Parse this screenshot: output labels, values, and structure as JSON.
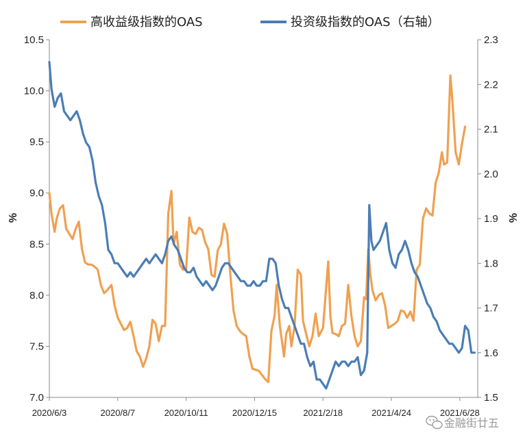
{
  "chart_data": {
    "type": "line",
    "title": "",
    "x_labels": [
      "2020/6/3",
      "2020/8/7",
      "2020/10/11",
      "2020/12/15",
      "2021/2/18",
      "2021/4/24",
      "2021/6/28"
    ],
    "xlim": [
      "2020/6/3",
      "2021/7/15"
    ],
    "ylabel_left": "%",
    "ylabel_right": "%",
    "ylim_left": [
      7.0,
      10.5
    ],
    "yticks_left": [
      "7.0",
      "7.5",
      "8.0",
      "8.5",
      "9.0",
      "9.5",
      "10.0",
      "10.5"
    ],
    "ylim_right": [
      1.5,
      2.3
    ],
    "yticks_right": [
      "1.5",
      "1.6",
      "1.7",
      "1.8",
      "1.9",
      "2.0",
      "2.1",
      "2.2",
      "2.3"
    ],
    "grid": false,
    "legend_position": "top",
    "series": [
      {
        "name": "高收益级指数的OAS",
        "axis": "left",
        "color": "#F0A050",
        "points": [
          [
            "2020/6/3",
            9.0
          ],
          [
            "2020/6/5",
            8.8
          ],
          [
            "2020/6/8",
            8.62
          ],
          [
            "2020/6/10",
            8.75
          ],
          [
            "2020/6/13",
            8.85
          ],
          [
            "2020/6/16",
            8.88
          ],
          [
            "2020/6/19",
            8.65
          ],
          [
            "2020/6/22",
            8.6
          ],
          [
            "2020/6/25",
            8.55
          ],
          [
            "2020/6/28",
            8.65
          ],
          [
            "2020/7/1",
            8.72
          ],
          [
            "2020/7/4",
            8.45
          ],
          [
            "2020/7/7",
            8.32
          ],
          [
            "2020/7/10",
            8.3
          ],
          [
            "2020/7/13",
            8.3
          ],
          [
            "2020/7/16",
            8.28
          ],
          [
            "2020/7/19",
            8.25
          ],
          [
            "2020/7/22",
            8.1
          ],
          [
            "2020/7/25",
            8.02
          ],
          [
            "2020/7/28",
            8.05
          ],
          [
            "2020/8/1",
            8.1
          ],
          [
            "2020/8/4",
            7.9
          ],
          [
            "2020/8/7",
            7.78
          ],
          [
            "2020/8/10",
            7.72
          ],
          [
            "2020/8/13",
            7.66
          ],
          [
            "2020/8/16",
            7.68
          ],
          [
            "2020/8/19",
            7.74
          ],
          [
            "2020/8/22",
            7.6
          ],
          [
            "2020/8/25",
            7.45
          ],
          [
            "2020/8/28",
            7.4
          ],
          [
            "2020/8/31",
            7.3
          ],
          [
            "2020/9/3",
            7.38
          ],
          [
            "2020/9/6",
            7.5
          ],
          [
            "2020/9/9",
            7.76
          ],
          [
            "2020/9/12",
            7.72
          ],
          [
            "2020/9/15",
            7.55
          ],
          [
            "2020/9/18",
            7.7
          ],
          [
            "2020/9/21",
            7.7
          ],
          [
            "2020/9/24",
            8.8
          ],
          [
            "2020/9/27",
            9.02
          ],
          [
            "2020/9/29",
            8.5
          ],
          [
            "2020/10/2",
            8.62
          ],
          [
            "2020/10/5",
            8.3
          ],
          [
            "2020/10/8",
            8.25
          ],
          [
            "2020/10/11",
            8.25
          ],
          [
            "2020/10/14",
            8.76
          ],
          [
            "2020/10/17",
            8.62
          ],
          [
            "2020/10/20",
            8.6
          ],
          [
            "2020/10/23",
            8.66
          ],
          [
            "2020/10/26",
            8.64
          ],
          [
            "2020/10/29",
            8.52
          ],
          [
            "2020/11/1",
            8.45
          ],
          [
            "2020/11/4",
            8.2
          ],
          [
            "2020/11/7",
            8.18
          ],
          [
            "2020/11/10",
            8.44
          ],
          [
            "2020/11/13",
            8.5
          ],
          [
            "2020/11/16",
            8.7
          ],
          [
            "2020/11/19",
            8.6
          ],
          [
            "2020/11/22",
            8.2
          ],
          [
            "2020/11/25",
            7.85
          ],
          [
            "2020/11/28",
            7.7
          ],
          [
            "2020/12/1",
            7.65
          ],
          [
            "2020/12/4",
            7.62
          ],
          [
            "2020/12/7",
            7.6
          ],
          [
            "2020/12/10",
            7.4
          ],
          [
            "2020/12/13",
            7.28
          ],
          [
            "2020/12/16",
            7.27
          ],
          [
            "2020/12/19",
            7.26
          ],
          [
            "2020/12/22",
            7.22
          ],
          [
            "2020/12/25",
            7.18
          ],
          [
            "2020/12/28",
            7.15
          ],
          [
            "2020/12/31",
            7.65
          ],
          [
            "2021/1/3",
            7.8
          ],
          [
            "2021/1/5",
            8.1
          ],
          [
            "2021/1/8",
            7.7
          ],
          [
            "2021/1/10",
            7.55
          ],
          [
            "2021/1/12",
            7.4
          ],
          [
            "2021/1/14",
            7.62
          ],
          [
            "2021/1/17",
            7.7
          ],
          [
            "2021/1/19",
            7.5
          ],
          [
            "2021/1/22",
            7.7
          ],
          [
            "2021/1/25",
            8.25
          ],
          [
            "2021/1/28",
            8.2
          ],
          [
            "2021/1/30",
            7.75
          ],
          [
            "2021/2/2",
            7.62
          ],
          [
            "2021/2/5",
            7.5
          ],
          [
            "2021/2/8",
            7.6
          ],
          [
            "2021/2/11",
            7.82
          ],
          [
            "2021/2/14",
            7.6
          ],
          [
            "2021/2/18",
            7.68
          ],
          [
            "2021/2/21",
            8.08
          ],
          [
            "2021/2/23",
            8.33
          ],
          [
            "2021/2/25",
            7.8
          ],
          [
            "2021/2/27",
            7.63
          ],
          [
            "2021/3/2",
            7.62
          ],
          [
            "2021/3/5",
            7.6
          ],
          [
            "2021/3/8",
            7.7
          ],
          [
            "2021/3/11",
            7.72
          ],
          [
            "2021/3/14",
            8.1
          ],
          [
            "2021/3/17",
            7.8
          ],
          [
            "2021/3/20",
            7.6
          ],
          [
            "2021/3/23",
            7.5
          ],
          [
            "2021/3/26",
            7.55
          ],
          [
            "2021/3/29",
            7.98
          ],
          [
            "2021/3/31",
            7.96
          ],
          [
            "2021/4/2",
            8.45
          ],
          [
            "2021/4/4",
            8.2
          ],
          [
            "2021/4/6",
            8.05
          ],
          [
            "2021/4/9",
            7.95
          ],
          [
            "2021/4/12",
            8.0
          ],
          [
            "2021/4/15",
            8.02
          ],
          [
            "2021/4/18",
            7.9
          ],
          [
            "2021/4/21",
            7.68
          ],
          [
            "2021/4/24",
            7.7
          ],
          [
            "2021/4/27",
            7.72
          ],
          [
            "2021/4/30",
            7.75
          ],
          [
            "2021/5/3",
            7.85
          ],
          [
            "2021/5/6",
            7.84
          ],
          [
            "2021/5/9",
            7.78
          ],
          [
            "2021/5/12",
            7.84
          ],
          [
            "2021/5/15",
            7.75
          ],
          [
            "2021/5/18",
            8.25
          ],
          [
            "2021/5/21",
            8.3
          ],
          [
            "2021/5/24",
            8.75
          ],
          [
            "2021/5/27",
            8.85
          ],
          [
            "2021/5/30",
            8.8
          ],
          [
            "2021/6/2",
            8.78
          ],
          [
            "2021/6/5",
            9.1
          ],
          [
            "2021/6/8",
            9.2
          ],
          [
            "2021/6/11",
            9.4
          ],
          [
            "2021/6/13",
            9.28
          ],
          [
            "2021/6/16",
            9.3
          ],
          [
            "2021/6/19",
            10.15
          ],
          [
            "2021/6/21",
            9.9
          ],
          [
            "2021/6/24",
            9.4
          ],
          [
            "2021/6/27",
            9.28
          ],
          [
            "2021/6/30",
            9.48
          ],
          [
            "2021/7/3",
            9.65
          ]
        ]
      },
      {
        "name": "投资级指数的OAS（右轴）",
        "axis": "right",
        "color": "#4A7DB5",
        "points": [
          [
            "2020/6/3",
            2.25
          ],
          [
            "2020/6/5",
            2.19
          ],
          [
            "2020/6/8",
            2.15
          ],
          [
            "2020/6/11",
            2.17
          ],
          [
            "2020/6/14",
            2.18
          ],
          [
            "2020/6/17",
            2.14
          ],
          [
            "2020/6/20",
            2.13
          ],
          [
            "2020/6/23",
            2.12
          ],
          [
            "2020/6/26",
            2.13
          ],
          [
            "2020/6/29",
            2.14
          ],
          [
            "2020/7/2",
            2.12
          ],
          [
            "2020/7/5",
            2.09
          ],
          [
            "2020/7/8",
            2.07
          ],
          [
            "2020/7/11",
            2.06
          ],
          [
            "2020/7/14",
            2.03
          ],
          [
            "2020/7/17",
            1.98
          ],
          [
            "2020/7/20",
            1.95
          ],
          [
            "2020/7/23",
            1.93
          ],
          [
            "2020/7/26",
            1.89
          ],
          [
            "2020/7/29",
            1.83
          ],
          [
            "2020/8/1",
            1.82
          ],
          [
            "2020/8/4",
            1.8
          ],
          [
            "2020/8/7",
            1.8
          ],
          [
            "2020/8/10",
            1.79
          ],
          [
            "2020/8/13",
            1.78
          ],
          [
            "2020/8/16",
            1.77
          ],
          [
            "2020/8/19",
            1.78
          ],
          [
            "2020/8/22",
            1.77
          ],
          [
            "2020/8/25",
            1.78
          ],
          [
            "2020/8/28",
            1.79
          ],
          [
            "2020/8/31",
            1.8
          ],
          [
            "2020/9/3",
            1.81
          ],
          [
            "2020/9/6",
            1.8
          ],
          [
            "2020/9/9",
            1.81
          ],
          [
            "2020/9/12",
            1.82
          ],
          [
            "2020/9/15",
            1.81
          ],
          [
            "2020/9/18",
            1.8
          ],
          [
            "2020/9/21",
            1.82
          ],
          [
            "2020/9/24",
            1.85
          ],
          [
            "2020/9/27",
            1.86
          ],
          [
            "2020/9/30",
            1.84
          ],
          [
            "2020/10/3",
            1.83
          ],
          [
            "2020/10/6",
            1.81
          ],
          [
            "2020/10/9",
            1.79
          ],
          [
            "2020/10/12",
            1.78
          ],
          [
            "2020/10/15",
            1.78
          ],
          [
            "2020/10/18",
            1.79
          ],
          [
            "2020/10/21",
            1.77
          ],
          [
            "2020/10/24",
            1.76
          ],
          [
            "2020/10/27",
            1.75
          ],
          [
            "2020/10/30",
            1.76
          ],
          [
            "2020/11/2",
            1.75
          ],
          [
            "2020/11/5",
            1.74
          ],
          [
            "2020/11/8",
            1.75
          ],
          [
            "2020/11/11",
            1.77
          ],
          [
            "2020/11/14",
            1.79
          ],
          [
            "2020/11/17",
            1.8
          ],
          [
            "2020/11/20",
            1.8
          ],
          [
            "2020/11/23",
            1.79
          ],
          [
            "2020/11/26",
            1.78
          ],
          [
            "2020/11/29",
            1.77
          ],
          [
            "2020/12/2",
            1.76
          ],
          [
            "2020/12/5",
            1.76
          ],
          [
            "2020/12/8",
            1.75
          ],
          [
            "2020/12/11",
            1.75
          ],
          [
            "2020/12/14",
            1.76
          ],
          [
            "2020/12/17",
            1.75
          ],
          [
            "2020/12/20",
            1.75
          ],
          [
            "2020/12/23",
            1.76
          ],
          [
            "2020/12/26",
            1.76
          ],
          [
            "2020/12/29",
            1.81
          ],
          [
            "2021/1/1",
            1.81
          ],
          [
            "2021/1/4",
            1.8
          ],
          [
            "2021/1/7",
            1.75
          ],
          [
            "2021/1/10",
            1.72
          ],
          [
            "2021/1/13",
            1.7
          ],
          [
            "2021/1/16",
            1.7
          ],
          [
            "2021/1/19",
            1.68
          ],
          [
            "2021/1/22",
            1.66
          ],
          [
            "2021/1/25",
            1.64
          ],
          [
            "2021/1/28",
            1.62
          ],
          [
            "2021/1/31",
            1.62
          ],
          [
            "2021/2/3",
            1.59
          ],
          [
            "2021/2/6",
            1.57
          ],
          [
            "2021/2/9",
            1.58
          ],
          [
            "2021/2/12",
            1.54
          ],
          [
            "2021/2/15",
            1.54
          ],
          [
            "2021/2/18",
            1.53
          ],
          [
            "2021/2/21",
            1.52
          ],
          [
            "2021/2/24",
            1.54
          ],
          [
            "2021/2/27",
            1.56
          ],
          [
            "2021/3/2",
            1.58
          ],
          [
            "2021/3/5",
            1.57
          ],
          [
            "2021/3/8",
            1.58
          ],
          [
            "2021/3/11",
            1.58
          ],
          [
            "2021/3/14",
            1.57
          ],
          [
            "2021/3/17",
            1.58
          ],
          [
            "2021/3/20",
            1.58
          ],
          [
            "2021/3/23",
            1.59
          ],
          [
            "2021/3/26",
            1.55
          ],
          [
            "2021/3/29",
            1.56
          ],
          [
            "2021/4/1",
            1.6
          ],
          [
            "2021/4/3",
            1.93
          ],
          [
            "2021/4/5",
            1.85
          ],
          [
            "2021/4/7",
            1.83
          ],
          [
            "2021/4/10",
            1.84
          ],
          [
            "2021/4/13",
            1.85
          ],
          [
            "2021/4/16",
            1.87
          ],
          [
            "2021/4/19",
            1.89
          ],
          [
            "2021/4/22",
            1.83
          ],
          [
            "2021/4/25",
            1.8
          ],
          [
            "2021/4/28",
            1.79
          ],
          [
            "2021/5/1",
            1.82
          ],
          [
            "2021/5/4",
            1.83
          ],
          [
            "2021/5/7",
            1.85
          ],
          [
            "2021/5/10",
            1.83
          ],
          [
            "2021/5/13",
            1.8
          ],
          [
            "2021/5/16",
            1.78
          ],
          [
            "2021/5/19",
            1.77
          ],
          [
            "2021/5/22",
            1.75
          ],
          [
            "2021/5/25",
            1.73
          ],
          [
            "2021/5/28",
            1.71
          ],
          [
            "2021/5/31",
            1.7
          ],
          [
            "2021/6/3",
            1.68
          ],
          [
            "2021/6/6",
            1.67
          ],
          [
            "2021/6/9",
            1.65
          ],
          [
            "2021/6/12",
            1.64
          ],
          [
            "2021/6/15",
            1.63
          ],
          [
            "2021/6/18",
            1.62
          ],
          [
            "2021/6/21",
            1.62
          ],
          [
            "2021/6/24",
            1.61
          ],
          [
            "2021/6/27",
            1.6
          ],
          [
            "2021/6/30",
            1.61
          ],
          [
            "2021/7/3",
            1.66
          ],
          [
            "2021/7/6",
            1.65
          ],
          [
            "2021/7/9",
            1.6
          ],
          [
            "2021/7/12",
            1.6
          ]
        ]
      }
    ]
  },
  "watermark": {
    "icon": "wechat-icon",
    "text": "金融街廿五"
  }
}
